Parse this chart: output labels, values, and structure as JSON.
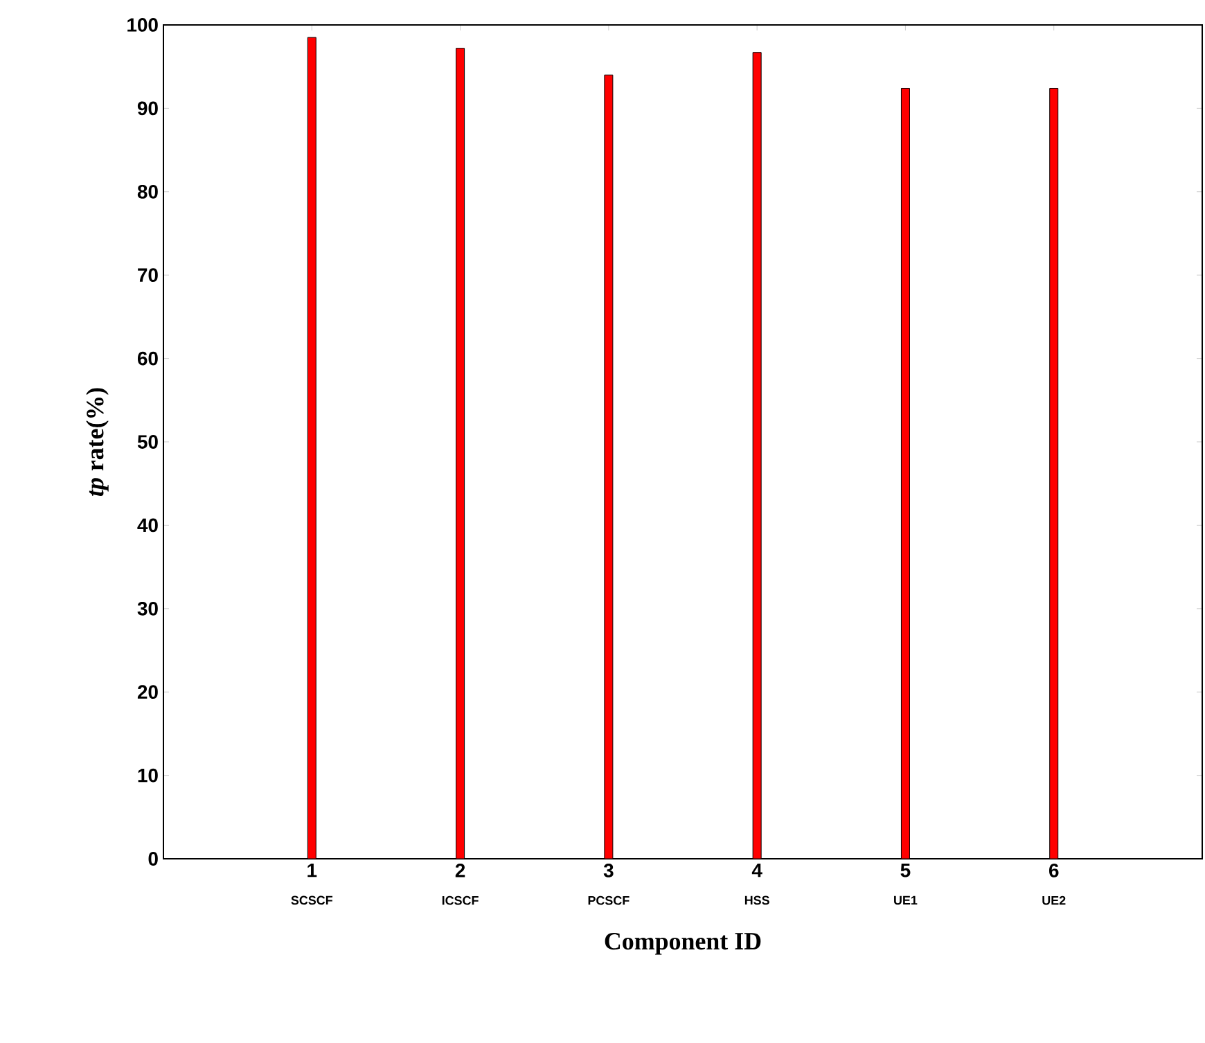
{
  "chart_data": {
    "type": "bar",
    "xlabel": "Component ID",
    "ylabel": "*tp* rate(%)",
    "categories": [
      "1",
      "2",
      "3",
      "4",
      "5",
      "6"
    ],
    "annotations": [
      "SCSCF",
      "ICSCF",
      "PCSCF",
      "HSS",
      "UE1",
      "UE2"
    ],
    "values": [
      98.5,
      97.2,
      94.0,
      96.7,
      92.4,
      92.4
    ],
    "color": "#ff0000",
    "ylim": [
      0,
      100
    ],
    "yticks": [
      0,
      10,
      20,
      30,
      40,
      50,
      60,
      70,
      80,
      90,
      100
    ]
  }
}
